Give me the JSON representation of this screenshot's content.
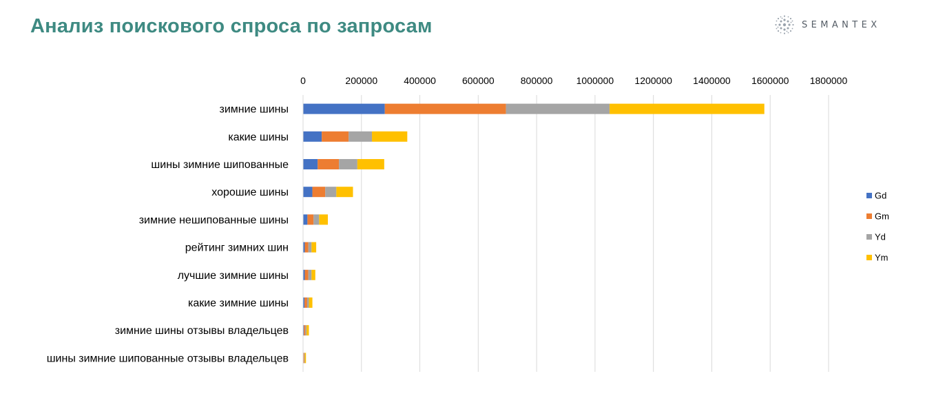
{
  "header": {
    "title": "Анализ поискового спроса по запросам",
    "logo_text": "SEMANTEX"
  },
  "colors": {
    "title": "#3e8a82",
    "Gd": "#4472c4",
    "Gm": "#ed7d31",
    "Yd": "#a5a5a5",
    "Ym": "#ffc000"
  },
  "chart_data": {
    "type": "bar",
    "orientation": "horizontal",
    "stacked": true,
    "categories": [
      "зимние шины",
      "какие шины",
      "шины зимние шипованные",
      "хорошие шины",
      "зимние нешипованные шины",
      "рейтинг зимних шин",
      "лучшие зимние шины",
      "какие зимние шины",
      "зимние шины отзывы владельцев",
      "шины зимние шипованные отзывы владельцев"
    ],
    "series": [
      {
        "name": "Gd",
        "values": [
          280000,
          64000,
          50000,
          32000,
          15000,
          6000,
          6000,
          5000,
          3000,
          1500
        ]
      },
      {
        "name": "Gm",
        "values": [
          415000,
          92000,
          73000,
          44000,
          21000,
          12000,
          12000,
          9000,
          5000,
          2500
        ]
      },
      {
        "name": "Yd",
        "values": [
          355000,
          80000,
          63000,
          38000,
          19000,
          11000,
          11000,
          6000,
          4000,
          2000
        ]
      },
      {
        "name": "Ym",
        "values": [
          530000,
          121000,
          92000,
          57000,
          30000,
          16000,
          13000,
          12000,
          8000,
          4000
        ]
      }
    ],
    "xlim": [
      0,
      1800000
    ],
    "xticks": [
      0,
      200000,
      400000,
      600000,
      800000,
      1000000,
      1200000,
      1400000,
      1600000,
      1800000
    ],
    "xaxis_position": "top",
    "grid": true,
    "legend_position": "right",
    "title": "",
    "xlabel": "",
    "ylabel": ""
  }
}
